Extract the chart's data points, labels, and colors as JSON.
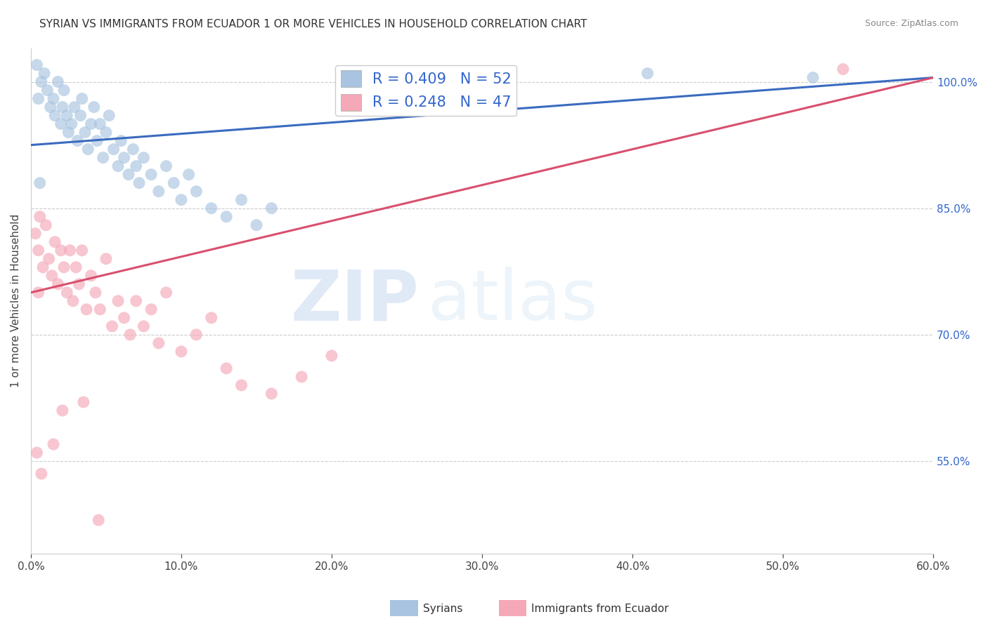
{
  "title": "SYRIAN VS IMMIGRANTS FROM ECUADOR 1 OR MORE VEHICLES IN HOUSEHOLD CORRELATION CHART",
  "source": "Source: ZipAtlas.com",
  "ylabel": "1 or more Vehicles in Household",
  "xlim": [
    0.0,
    60.0
  ],
  "ylim": [
    44.0,
    104.0
  ],
  "xticks": [
    0.0,
    10.0,
    20.0,
    30.0,
    40.0,
    50.0,
    60.0
  ],
  "yticks_right": [
    55.0,
    70.0,
    85.0,
    100.0
  ],
  "legend_blue": "R = 0.409   N = 52",
  "legend_pink": "R = 0.248   N = 47",
  "blue_color": "#a8c4e0",
  "pink_color": "#f4a8b8",
  "blue_line_color": "#3a6bbf",
  "pink_line_color": "#d94f6e",
  "watermark_zip": "ZIP",
  "watermark_atlas": "atlas",
  "blue_trend_x0": 0.0,
  "blue_trend_y0": 92.5,
  "blue_trend_x1": 60.0,
  "blue_trend_y1": 100.5,
  "pink_trend_x0": 0.0,
  "pink_trend_y0": 75.0,
  "pink_trend_x1": 60.0,
  "pink_trend_y1": 100.5,
  "syrians_x": [
    0.5,
    0.7,
    0.9,
    1.1,
    1.3,
    1.5,
    1.6,
    1.8,
    2.0,
    2.1,
    2.2,
    2.4,
    2.5,
    2.7,
    2.9,
    3.1,
    3.3,
    3.4,
    3.6,
    3.8,
    4.0,
    4.2,
    4.4,
    4.6,
    4.8,
    5.0,
    5.2,
    5.5,
    5.8,
    6.0,
    6.2,
    6.5,
    6.8,
    7.0,
    7.2,
    7.5,
    8.0,
    8.5,
    9.0,
    9.5,
    10.0,
    10.5,
    11.0,
    12.0,
    13.0,
    14.0,
    15.0,
    16.0,
    0.4,
    0.6,
    41.0,
    52.0
  ],
  "syrians_y": [
    98.0,
    100.0,
    101.0,
    99.0,
    97.0,
    98.0,
    96.0,
    100.0,
    95.0,
    97.0,
    99.0,
    96.0,
    94.0,
    95.0,
    97.0,
    93.0,
    96.0,
    98.0,
    94.0,
    92.0,
    95.0,
    97.0,
    93.0,
    95.0,
    91.0,
    94.0,
    96.0,
    92.0,
    90.0,
    93.0,
    91.0,
    89.0,
    92.0,
    90.0,
    88.0,
    91.0,
    89.0,
    87.0,
    90.0,
    88.0,
    86.0,
    89.0,
    87.0,
    85.0,
    84.0,
    86.0,
    83.0,
    85.0,
    102.0,
    88.0,
    101.0,
    100.5
  ],
  "ecuador_x": [
    0.3,
    0.5,
    0.6,
    0.8,
    1.0,
    1.2,
    1.4,
    1.6,
    1.8,
    2.0,
    2.2,
    2.4,
    2.6,
    2.8,
    3.0,
    3.2,
    3.4,
    3.7,
    4.0,
    4.3,
    4.6,
    5.0,
    5.4,
    5.8,
    6.2,
    6.6,
    7.0,
    7.5,
    8.0,
    8.5,
    9.0,
    10.0,
    11.0,
    12.0,
    13.0,
    14.0,
    16.0,
    18.0,
    20.0,
    0.4,
    0.7,
    1.5,
    2.1,
    3.5,
    4.5,
    54.0,
    0.5
  ],
  "ecuador_y": [
    82.0,
    80.0,
    84.0,
    78.0,
    83.0,
    79.0,
    77.0,
    81.0,
    76.0,
    80.0,
    78.0,
    75.0,
    80.0,
    74.0,
    78.0,
    76.0,
    80.0,
    73.0,
    77.0,
    75.0,
    73.0,
    79.0,
    71.0,
    74.0,
    72.0,
    70.0,
    74.0,
    71.0,
    73.0,
    69.0,
    75.0,
    68.0,
    70.0,
    72.0,
    66.0,
    64.0,
    63.0,
    65.0,
    67.5,
    56.0,
    53.5,
    57.0,
    61.0,
    62.0,
    48.0,
    101.5,
    75.0
  ]
}
